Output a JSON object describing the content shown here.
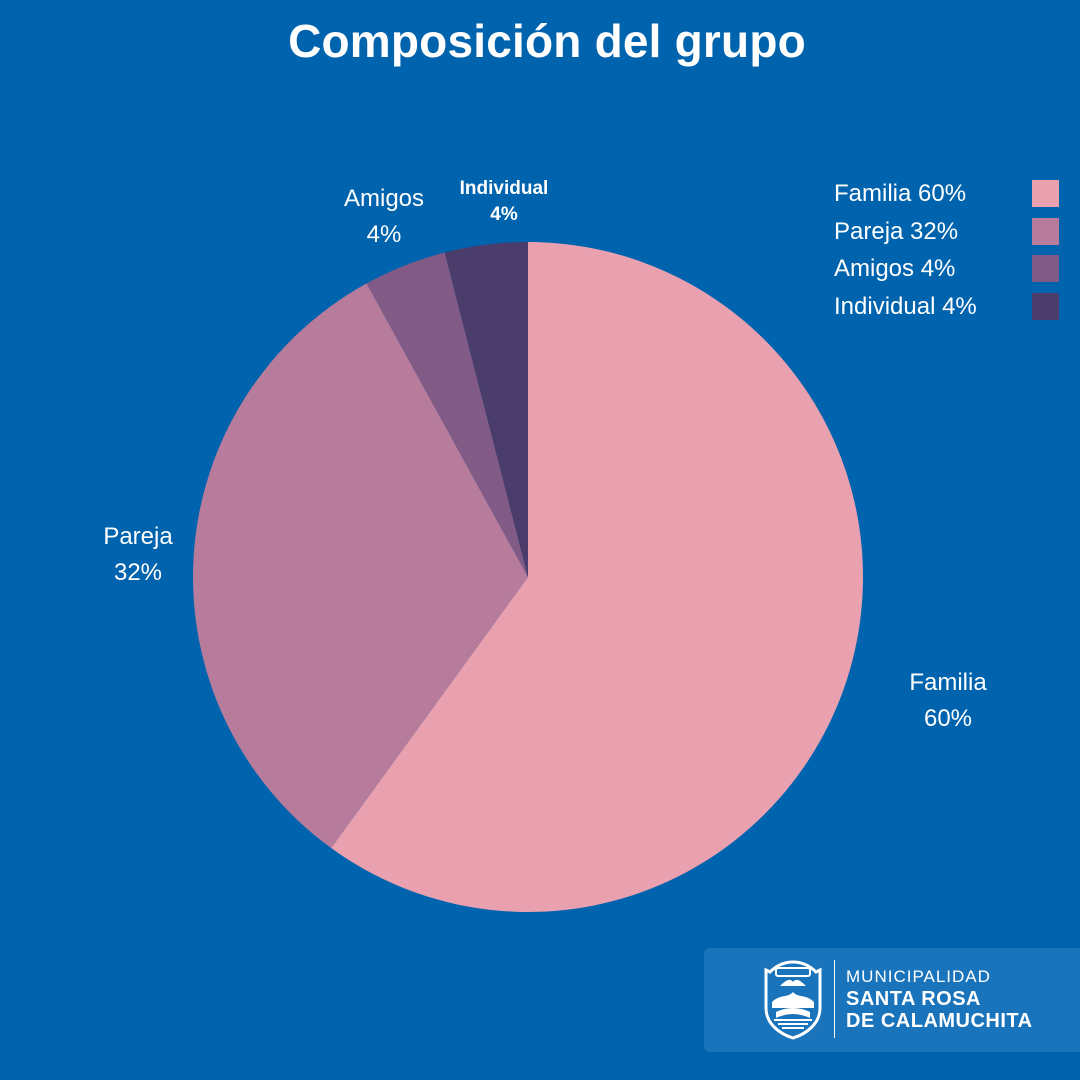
{
  "chart_data": {
    "type": "pie",
    "title": "Composición del grupo",
    "categories": [
      "Familia",
      "Pareja",
      "Amigos",
      "Individual"
    ],
    "values": [
      60,
      32,
      4,
      4
    ],
    "unit": "%",
    "colors": [
      "#e9a1b0",
      "#b77b9b",
      "#825a86",
      "#4a3c6b"
    ],
    "slice_labels": [
      {
        "name": "Familia",
        "value": "60%"
      },
      {
        "name": "Pareja",
        "value": "32%"
      },
      {
        "name": "Amigos",
        "value": "4%"
      },
      {
        "name": "Individual",
        "value": "4%"
      }
    ],
    "legend": {
      "position": "top-right",
      "items": [
        "Familia 60%",
        "Pareja 32%",
        "Amigos 4%",
        "Individual 4%"
      ]
    }
  },
  "branding": {
    "line1": "MUNICIPALIDAD",
    "line2": "SANTA ROSA",
    "line3": "DE CALAMUCHITA"
  },
  "colors": {
    "background": "#0063ad",
    "brand_box": "#1a74bc"
  }
}
